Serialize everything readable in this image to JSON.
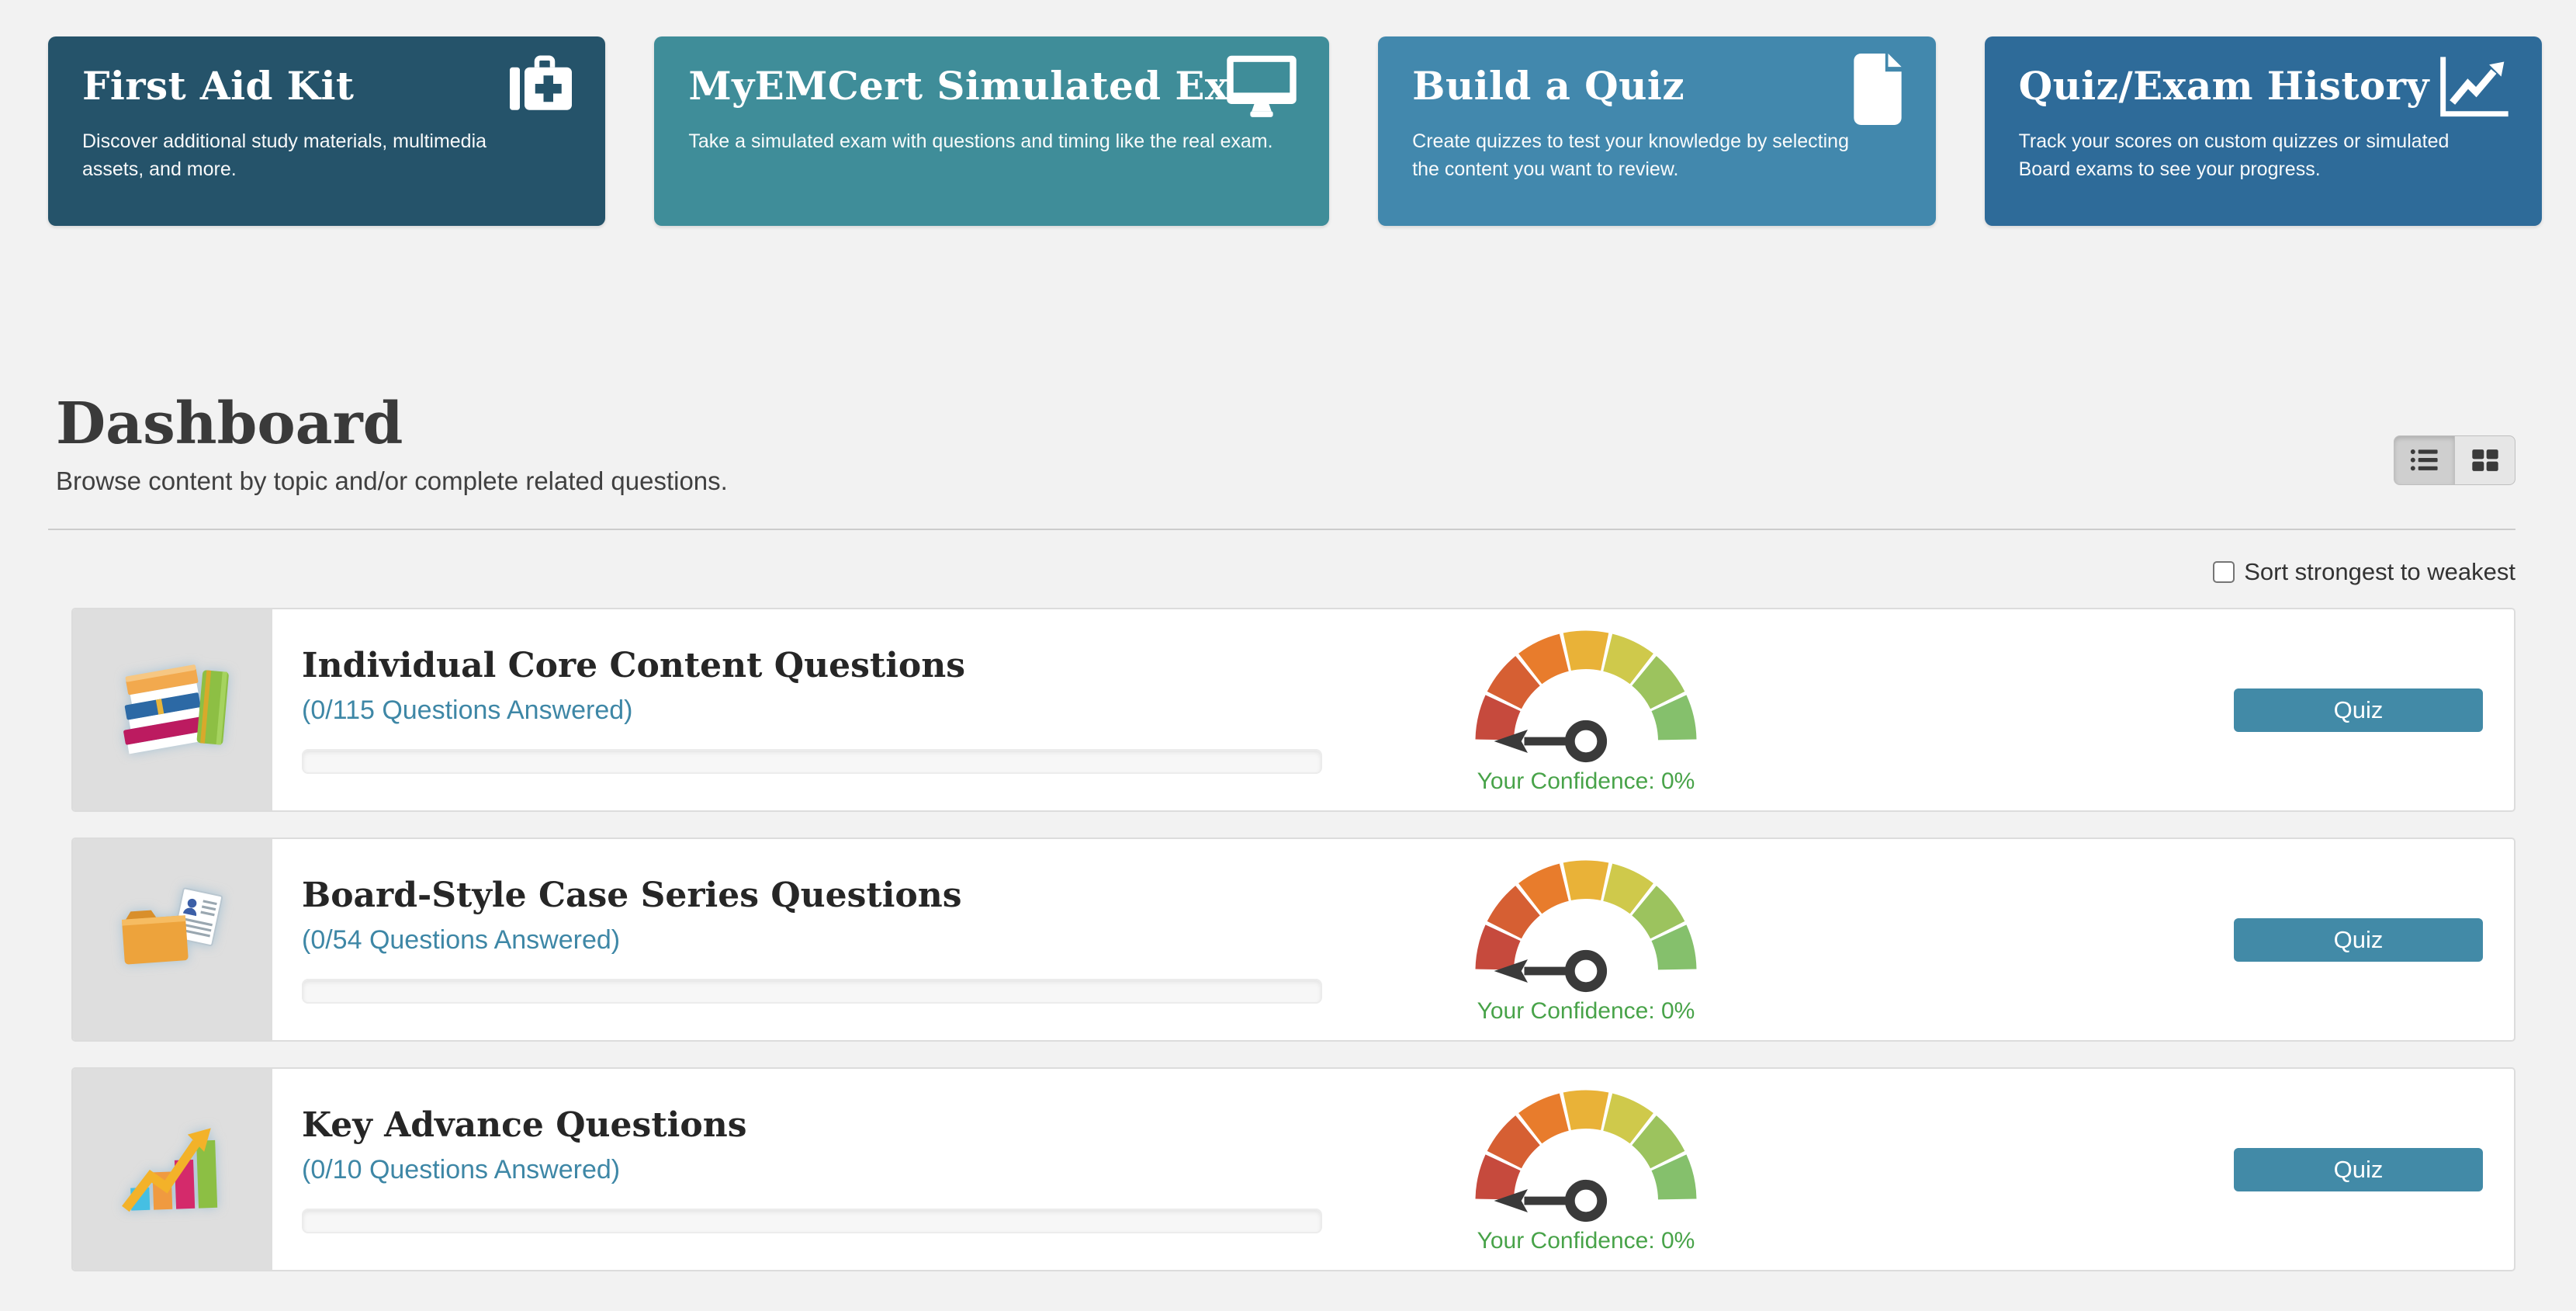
{
  "cards": [
    {
      "title": "First Aid Kit",
      "description": "Discover additional study materials, multimedia assets, and more.",
      "color": "#25536a",
      "icon": "medkit-icon"
    },
    {
      "title": "MyEMCert Simulated Exam",
      "description": "Take a simulated exam with questions and timing like the real exam.",
      "color": "#3f8d99",
      "icon": "desktop-icon"
    },
    {
      "title": "Build a Quiz",
      "description": "Create quizzes to test your knowledge by selecting the content you want to review.",
      "color": "#4288ad",
      "icon": "file-icon"
    },
    {
      "title": "Quiz/Exam History",
      "description": "Track your scores on custom quizzes or simulated Board exams to see your progress.",
      "color": "#2e6b99",
      "icon": "line-chart-icon"
    }
  ],
  "dashboard": {
    "title": "Dashboard",
    "subtitle": "Browse content by topic and/or complete related questions.",
    "sort_label": "Sort strongest to weakest",
    "sort_checked": false,
    "active_view": "list"
  },
  "rows": [
    {
      "title": "Individual Core Content Questions",
      "answered_link": "(0/115 Questions Answered)",
      "progress_percent": 0,
      "confidence_percent": 0,
      "confidence_label": "Your Confidence: 0%",
      "button_label": "Quiz",
      "icon": "books-icon"
    },
    {
      "title": "Board-Style Case Series Questions",
      "answered_link": "(0/54 Questions Answered)",
      "progress_percent": 0,
      "confidence_percent": 0,
      "confidence_label": "Your Confidence: 0%",
      "button_label": "Quiz",
      "icon": "folder-document-icon"
    },
    {
      "title": "Key Advance Questions",
      "answered_link": "(0/10 Questions Answered)",
      "progress_percent": 0,
      "confidence_percent": 0,
      "confidence_label": "Your Confidence: 0%",
      "button_label": "Quiz",
      "icon": "bar-chart-growth-icon"
    }
  ],
  "gauge": {
    "segment_colors": [
      "#c64a3d",
      "#d65f33",
      "#e87c2c",
      "#e9b238",
      "#cfc94b",
      "#9cc35e",
      "#85c06c"
    ],
    "needle_color": "#3a3a3a",
    "label_color": "#48a349"
  },
  "colors": {
    "page_bg": "#f2f2f2",
    "accent": "#428aa7",
    "link": "#3e87a6",
    "row_border": "#dcdcdc",
    "icon_block_bg": "#dedede"
  }
}
